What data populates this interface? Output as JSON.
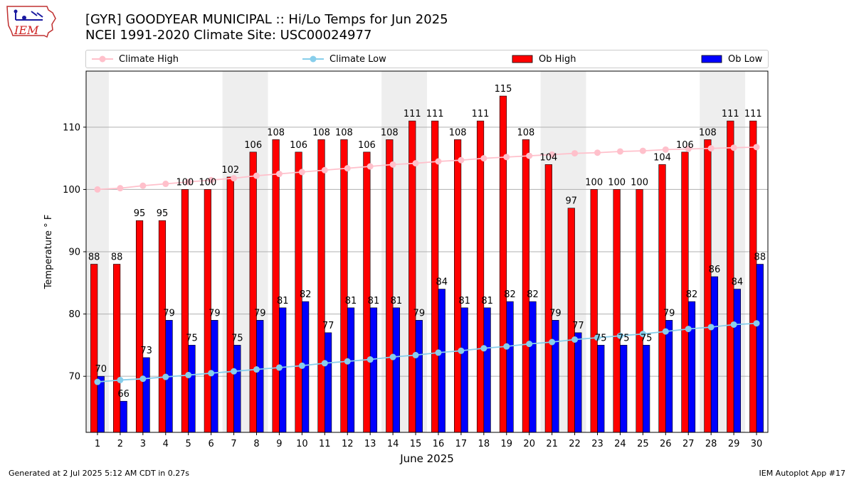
{
  "header": {
    "title": "[GYR] GOODYEAR MUNICIPAL :: Hi/Lo Temps for Jun 2025",
    "subtitle": "NCEI 1991-2020 Climate Site: USC00024977",
    "logo_text": "IEM"
  },
  "legend": {
    "climate_high": "Climate High",
    "climate_low": "Climate Low",
    "ob_high": "Ob High",
    "ob_low": "Ob Low"
  },
  "footer": {
    "generated": "Generated at 2 Jul 2025 5:12 AM CDT in 0.27s",
    "app": "IEM Autoplot App #17"
  },
  "colors": {
    "ob_high": "#ff0000",
    "ob_low": "#0000ff",
    "climate_high": "#ffc0cb",
    "climate_low": "#87ceeb",
    "weekend_band": "#eeeeee",
    "grid": "#b0b0b0"
  },
  "chart_data": {
    "type": "bar",
    "title": "[GYR] GOODYEAR MUNICIPAL :: Hi/Lo Temps for Jun 2025",
    "xlabel": "June 2025",
    "ylabel": "Temperature ° F",
    "ylim": [
      61,
      119
    ],
    "yticks": [
      70,
      80,
      90,
      100,
      110
    ],
    "grid": "horizontal",
    "legend_position": "top",
    "categories": [
      1,
      2,
      3,
      4,
      5,
      6,
      7,
      8,
      9,
      10,
      11,
      12,
      13,
      14,
      15,
      16,
      17,
      18,
      19,
      20,
      21,
      22,
      23,
      24,
      25,
      26,
      27,
      28,
      29,
      30
    ],
    "weekend_bands": [
      [
        1,
        1
      ],
      [
        7,
        8
      ],
      [
        14,
        15
      ],
      [
        21,
        22
      ],
      [
        28,
        29
      ]
    ],
    "series": [
      {
        "name": "Ob High",
        "kind": "bar",
        "values": [
          88,
          88,
          95,
          95,
          100,
          100,
          102,
          106,
          108,
          106,
          108,
          108,
          106,
          108,
          111,
          111,
          108,
          111,
          115,
          108,
          104,
          97,
          100,
          100,
          100,
          104,
          106,
          108,
          111,
          111
        ]
      },
      {
        "name": "Ob Low",
        "kind": "bar",
        "values": [
          70,
          66,
          73,
          79,
          75,
          79,
          75,
          79,
          81,
          82,
          77,
          81,
          81,
          81,
          79,
          84,
          81,
          81,
          82,
          82,
          79,
          77,
          75,
          75,
          75,
          79,
          82,
          86,
          84,
          88
        ]
      },
      {
        "name": "Climate High",
        "kind": "line",
        "values": [
          100.0,
          100.2,
          100.6,
          100.9,
          101.2,
          101.5,
          101.8,
          102.2,
          102.5,
          102.8,
          103.1,
          103.4,
          103.7,
          104.0,
          104.2,
          104.5,
          104.7,
          105.0,
          105.2,
          105.4,
          105.6,
          105.8,
          105.9,
          106.1,
          106.2,
          106.4,
          106.5,
          106.6,
          106.7,
          106.8
        ]
      },
      {
        "name": "Climate Low",
        "kind": "line",
        "values": [
          69.1,
          69.4,
          69.6,
          69.9,
          70.2,
          70.5,
          70.8,
          71.1,
          71.4,
          71.7,
          72.1,
          72.4,
          72.7,
          73.1,
          73.4,
          73.8,
          74.1,
          74.5,
          74.8,
          75.2,
          75.5,
          75.9,
          76.2,
          76.5,
          76.8,
          77.2,
          77.6,
          77.9,
          78.3,
          78.5
        ]
      }
    ]
  }
}
